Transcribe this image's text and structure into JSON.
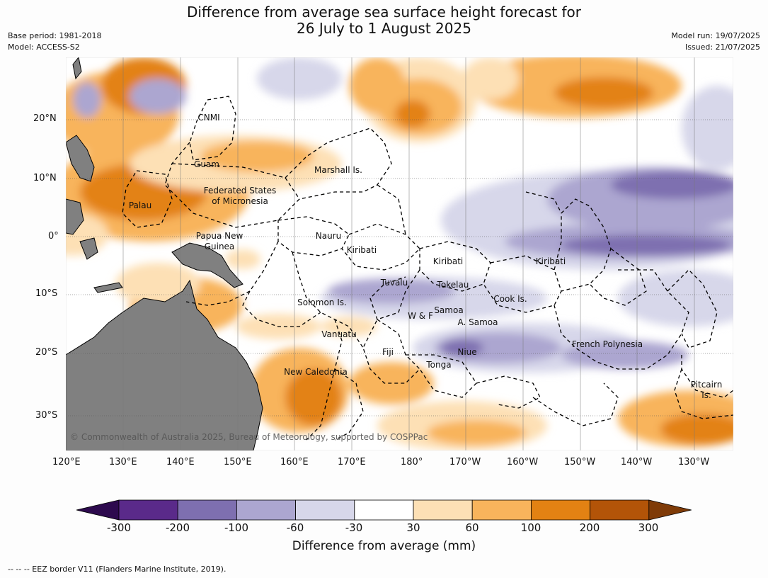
{
  "title_line1": "Difference from average sea surface height forecast for",
  "title_line2": "26 July to 1 August 2025",
  "meta_left": [
    "Base period: 1981-2018",
    "Model: ACCESS-S2"
  ],
  "meta_right": [
    "Model run: 19/07/2025",
    "Issued: 21/07/2025"
  ],
  "lon_labels": [
    "120°E",
    "130°E",
    "140°E",
    "150°E",
    "160°E",
    "170°E",
    "180°",
    "170°W",
    "160°W",
    "150°W",
    "140°W",
    "130°W"
  ],
  "lat_labels": [
    "20°N",
    "10°N",
    "0°",
    "10°S",
    "20°S",
    "30°S"
  ],
  "region_labels": [
    "CNMI",
    "Guam",
    "Marshall Is.",
    "Federated States",
    "of Micronesia",
    "Palau",
    "Papua New",
    "Guinea",
    "Nauru",
    "Kiribati",
    "Kiribati",
    "Kiribati",
    "Tuvalu",
    "Tokelau",
    "Solomon Is.",
    "Cook Is.",
    "W & F",
    "Samoa",
    "A. Samoa",
    "Vanuatu",
    "Fiji",
    "Niue",
    "French Polynesia",
    "Tonga",
    "New Caledonia",
    "Pitcairn",
    "Is."
  ],
  "copyright": "© Commonwealth of Australia 2025, Bureau of Meteorology, supported by COSPPac",
  "colorbar": {
    "ticks": [
      "-300",
      "-200",
      "-100",
      "-60",
      "-30",
      "30",
      "60",
      "100",
      "200",
      "300"
    ],
    "colors": [
      "#5a2a8a",
      "#7e6fb0",
      "#aca6d0",
      "#d7d7ea",
      "#ffffff",
      "#fde0b5",
      "#f8b45c",
      "#e38213",
      "#b35408"
    ],
    "under_color": "#2d0a4e",
    "over_color": "#7f3b08",
    "label": "Difference from average (mm)"
  },
  "footer": "--  --  -- EEZ border V11 (Flanders Marine Institute, 2019)."
}
